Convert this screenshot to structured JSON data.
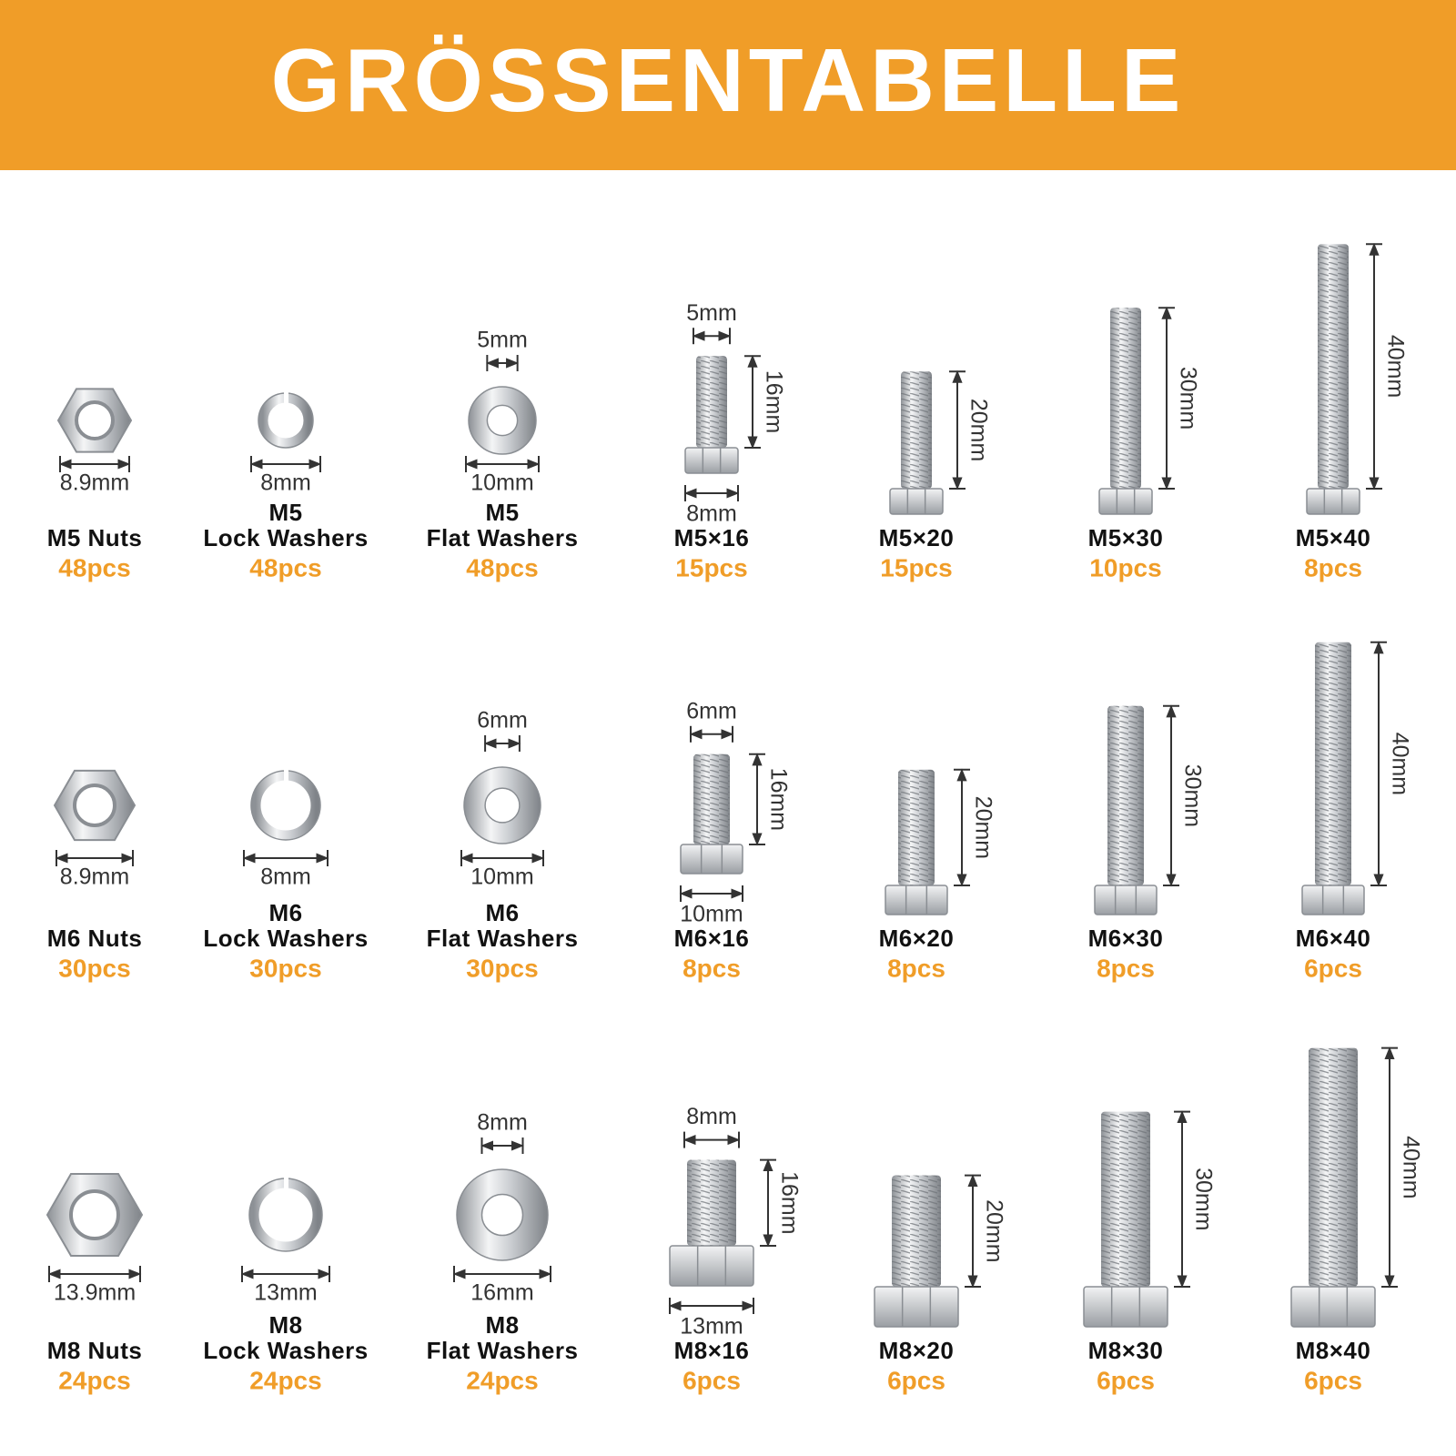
{
  "header": {
    "title": "GRÖSSENTABELLE"
  },
  "rows": [
    {
      "items": [
        {
          "bottom": "8.9mm",
          "name": [
            "M5 Nuts"
          ],
          "count": "48pcs"
        },
        {
          "bottom": "8mm",
          "name": [
            "M5",
            "Lock Washers"
          ],
          "count": "48pcs"
        },
        {
          "top": "5mm",
          "bottom": "10mm",
          "name": [
            "M5",
            "Flat Washers"
          ],
          "count": "48pcs"
        },
        {
          "top": "5mm",
          "bottom": "8mm",
          "side": "16mm",
          "name": [
            "M5×16"
          ],
          "count": "15pcs"
        },
        {
          "side": "20mm",
          "name": [
            "M5×20"
          ],
          "count": "15pcs"
        },
        {
          "side": "30mm",
          "name": [
            "M5×30"
          ],
          "count": "10pcs"
        },
        {
          "side": "40mm",
          "name": [
            "M5×40"
          ],
          "count": "8pcs"
        }
      ]
    },
    {
      "items": [
        {
          "bottom": "8.9mm",
          "name": [
            "M6 Nuts"
          ],
          "count": "30pcs"
        },
        {
          "bottom": "8mm",
          "name": [
            "M6",
            "Lock Washers"
          ],
          "count": "30pcs"
        },
        {
          "top": "6mm",
          "bottom": "10mm",
          "name": [
            "M6",
            "Flat Washers"
          ],
          "count": "30pcs"
        },
        {
          "top": "6mm",
          "bottom": "10mm",
          "side": "16mm",
          "name": [
            "M6×16"
          ],
          "count": "8pcs"
        },
        {
          "side": "20mm",
          "name": [
            "M6×20"
          ],
          "count": "8pcs"
        },
        {
          "side": "30mm",
          "name": [
            "M6×30"
          ],
          "count": "8pcs"
        },
        {
          "side": "40mm",
          "name": [
            "M6×40"
          ],
          "count": "6pcs"
        }
      ]
    },
    {
      "items": [
        {
          "bottom": "13.9mm",
          "name": [
            "M8 Nuts"
          ],
          "count": "24pcs"
        },
        {
          "bottom": "13mm",
          "name": [
            "M8",
            "Lock Washers"
          ],
          "count": "24pcs"
        },
        {
          "top": "8mm",
          "bottom": "16mm",
          "name": [
            "M8",
            "Flat Washers"
          ],
          "count": "24pcs"
        },
        {
          "top": "8mm",
          "bottom": "13mm",
          "side": "16mm",
          "name": [
            "M8×16"
          ],
          "count": "6pcs"
        },
        {
          "side": "20mm",
          "name": [
            "M8×20"
          ],
          "count": "6pcs"
        },
        {
          "side": "30mm",
          "name": [
            "M8×30"
          ],
          "count": "6pcs"
        },
        {
          "side": "40mm",
          "name": [
            "M8×40"
          ],
          "count": "6pcs"
        }
      ]
    }
  ]
}
